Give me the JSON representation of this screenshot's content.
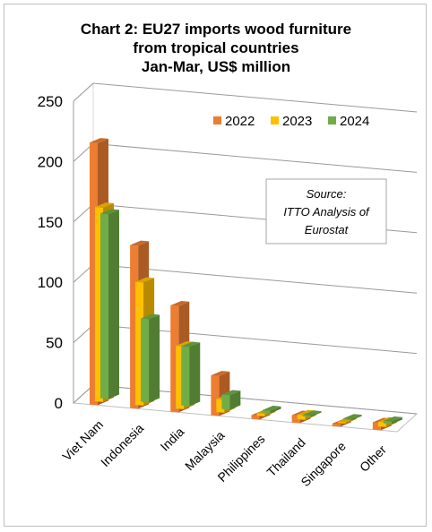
{
  "chart_data": {
    "type": "bar",
    "title_lines": [
      "Chart 2: EU27 imports wood furniture",
      "from tropical countries",
      "Jan-Mar, US$ million"
    ],
    "categories": [
      "Viet Nam",
      "Indonesia",
      "India",
      "Malaysia",
      "Philippines",
      "Thailand",
      "Singapore",
      "Other"
    ],
    "series": [
      {
        "name": "2022",
        "color": "#ed7d31",
        "values": [
          217,
          135,
          88,
          33,
          3,
          6,
          2,
          6
        ]
      },
      {
        "name": "2023",
        "color": "#ffc000",
        "values": [
          161,
          102,
          52,
          11,
          2,
          4,
          1,
          4
        ]
      },
      {
        "name": "2024",
        "color": "#70ad47",
        "values": [
          153,
          69,
          49,
          12,
          2,
          1,
          1,
          2
        ]
      }
    ],
    "ylim": [
      0,
      250
    ],
    "yticks": [
      0,
      50,
      100,
      150,
      200,
      250
    ],
    "grid": true,
    "legend": "top-right",
    "annotation": [
      "Source:",
      "ITTO Analysis of",
      "Eurostat"
    ]
  }
}
